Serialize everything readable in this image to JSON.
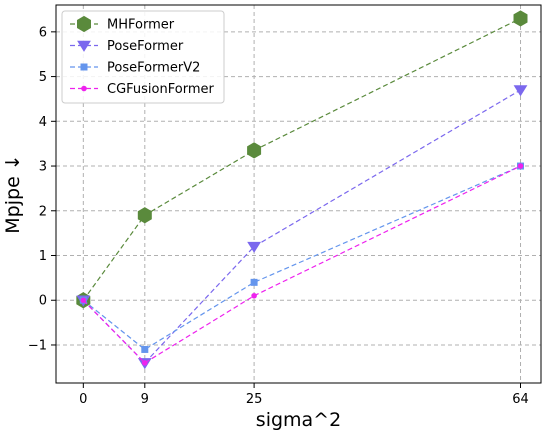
{
  "chart_data": {
    "type": "line",
    "title": "",
    "xlabel": "sigma^2",
    "ylabel": "Mpjpe ↓",
    "x": [
      0,
      9,
      25,
      64
    ],
    "x_tick_labels": [
      "0",
      "9",
      "25",
      "64"
    ],
    "xlim": [
      -4,
      67
    ],
    "y_ticks": [
      -1,
      0,
      1,
      2,
      3,
      4,
      5,
      6
    ],
    "y_tick_labels": [
      "−1",
      "0",
      "1",
      "2",
      "3",
      "4",
      "5",
      "6"
    ],
    "ylim": [
      -1.85,
      6.6
    ],
    "grid": true,
    "legend_placement": "top-left",
    "series": [
      {
        "name": "MHFormer",
        "values": [
          0,
          1.9,
          3.35,
          6.3
        ],
        "color": "#5a8a3c",
        "marker": "hexagon",
        "line_style": "dashed"
      },
      {
        "name": "PoseFormer",
        "values": [
          0,
          -1.4,
          1.2,
          4.7
        ],
        "color": "#7b68ee",
        "marker": "triangle-down",
        "line_style": "dashed"
      },
      {
        "name": "PoseFormerV2",
        "values": [
          0,
          -1.1,
          0.4,
          3.0
        ],
        "color": "#6495ed",
        "marker": "square",
        "line_style": "dashed"
      },
      {
        "name": "CGFusionFormer",
        "values": [
          0,
          -1.4,
          0.1,
          3.0
        ],
        "color": "#ee22ee",
        "marker": "circle",
        "line_style": "dashed"
      }
    ]
  }
}
